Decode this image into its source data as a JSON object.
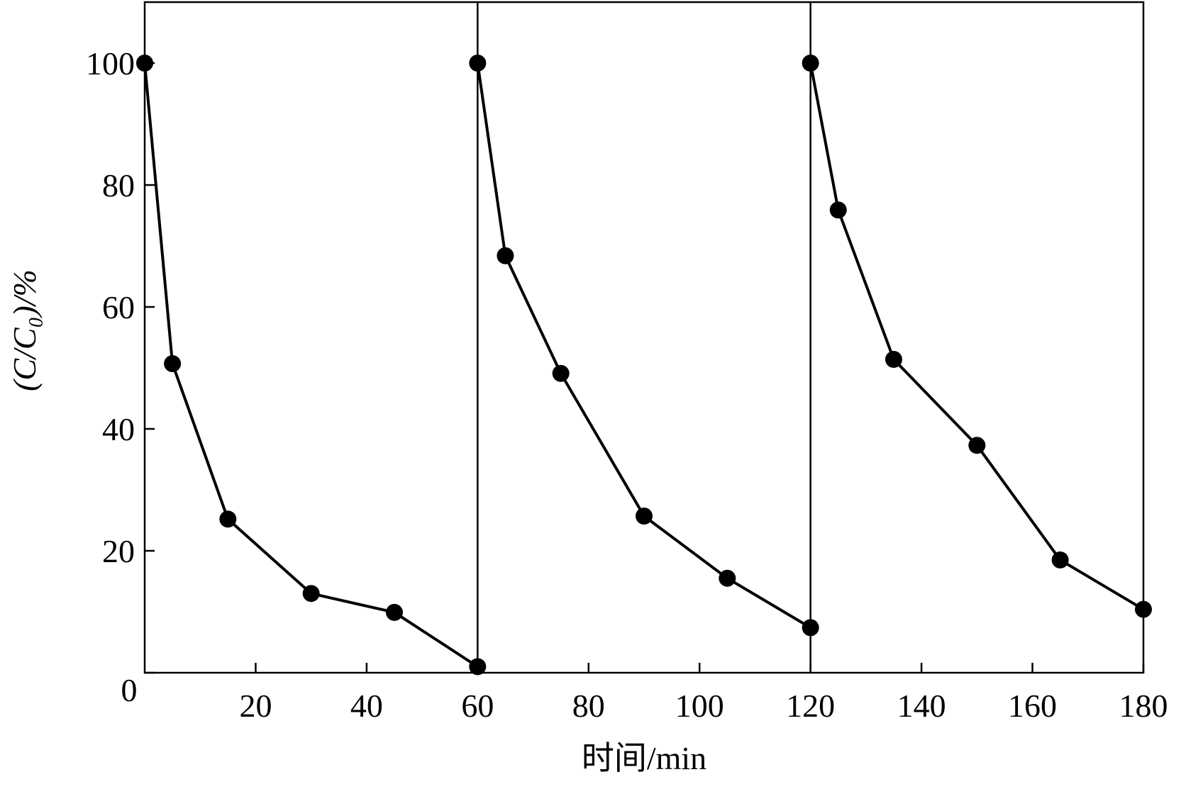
{
  "chart_data": {
    "type": "line",
    "x_label": "时间/min",
    "y_label": "(C/C₀)/%",
    "xlim": [
      0,
      180
    ],
    "ylim": [
      0,
      110
    ],
    "xticks": [
      20,
      40,
      60,
      80,
      100,
      120,
      140,
      160,
      180
    ],
    "yticks": [
      0,
      20,
      40,
      60,
      80,
      100
    ],
    "dividers": [
      60,
      120
    ],
    "series": [
      {
        "color": "#000000",
        "x": [
          0,
          5,
          15,
          30,
          45,
          60
        ],
        "values": [
          100,
          50.7,
          25.2,
          13.0,
          9.9,
          1.0
        ]
      },
      {
        "color": "#000000",
        "x": [
          60,
          65,
          75,
          90,
          105,
          120
        ],
        "values": [
          100,
          68.4,
          49.1,
          25.7,
          15.5,
          7.4
        ]
      },
      {
        "color": "#000000",
        "x": [
          120,
          125,
          135,
          150,
          165,
          180
        ],
        "values": [
          100,
          75.9,
          51.4,
          37.3,
          18.5,
          10.4
        ]
      }
    ]
  }
}
